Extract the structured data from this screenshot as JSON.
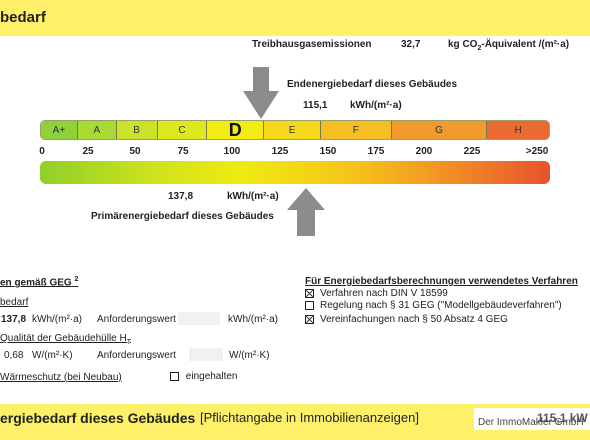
{
  "header": {
    "title": "bedarf"
  },
  "emissions": {
    "label": "Treibhausgasemissionen",
    "value": "32,7",
    "unit_prefix": "kg CO",
    "unit_sub": "2",
    "unit_suffix": "-Äquivalent /(m²·a)"
  },
  "end_energy": {
    "label": "Endenergiebedarf dieses Gebäudes",
    "value": "115,1",
    "unit": "kWh/(m²·a)"
  },
  "scale": {
    "classes": [
      "A+",
      "A",
      "B",
      "C",
      "D",
      "E",
      "F",
      "G",
      "H"
    ],
    "current_class": "D",
    "ticks": [
      "0",
      "25",
      "50",
      "75",
      "100",
      "125",
      "150",
      "175",
      "200",
      "225",
      ">250"
    ],
    "colors": [
      "#8fd13a",
      "#a9da33",
      "#c8e32a",
      "#dde81f",
      "#f3ec14",
      "#f5d81c",
      "#f5be23",
      "#f19a2d",
      "#ea6a2f"
    ]
  },
  "primary_energy": {
    "label": "Primärenergiebedarf dieses Gebäudes",
    "value": "137,8",
    "unit": "kWh/(m²·a)"
  },
  "requirements": {
    "title": "en gemäß GEG",
    "title_note": "2",
    "bedarf_label": "bedarf",
    "row1": {
      "value": "137,8",
      "unit": "kWh/(m²·a)",
      "req_label": "Anforderungswert",
      "req_unit": "kWh/(m²·a)"
    },
    "shell_label": "Qualität der Gebäudehülle H",
    "shell_sub": "T",
    "row2": {
      "value": "0,68",
      "unit": "W/(m²·K)",
      "req_label": "Anforderungswert",
      "req_unit": "W/(m²·K)"
    },
    "summer_label": "Wärmeschutz (bei Neubau)",
    "summer_option": "eingehalten"
  },
  "methods": {
    "title": "Für Energiebedarfsberechnungen verwendetes Verfahren",
    "items": [
      {
        "label": "Verfahren nach DIN V 18599",
        "checked": true
      },
      {
        "label": "Regelung nach § 31 GEG (\"Modellgebäudeverfahren\")",
        "checked": false
      },
      {
        "label": "Vereinfachungen nach § 50 Absatz 4 GEG",
        "checked": true
      }
    ]
  },
  "footer": {
    "title": "ergiebedarf dieses Gebäudes",
    "note": "[Pflichtangabe in Immobilienanzeigen]",
    "value": "115,1 kW",
    "watermark": "Der ImmoMakler GmbH"
  }
}
